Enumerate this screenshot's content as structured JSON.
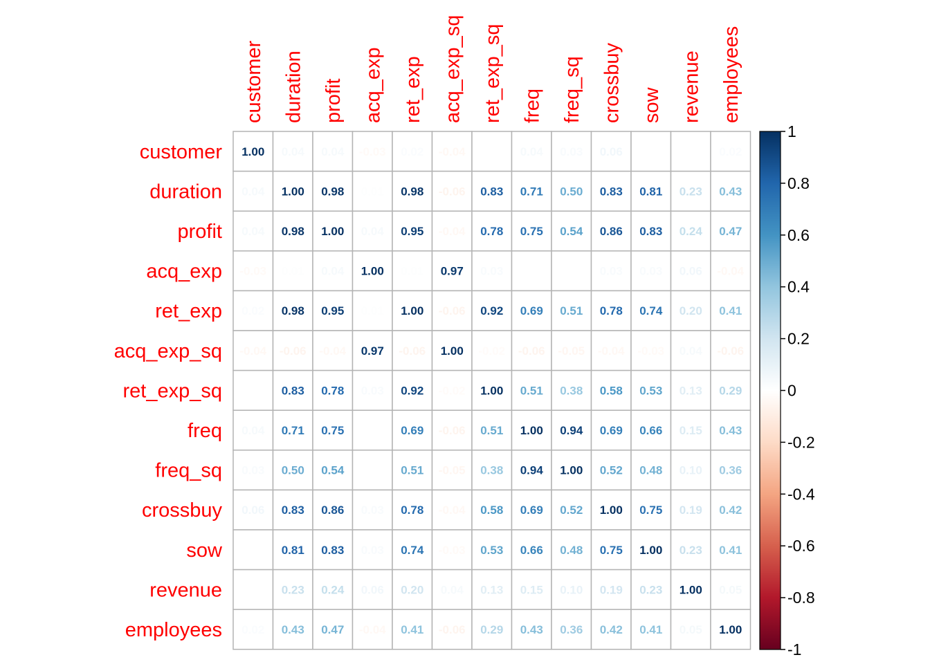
{
  "chart_data": {
    "type": "heatmap",
    "title": "",
    "variables": [
      "customer",
      "duration",
      "profit",
      "acq_exp",
      "ret_exp",
      "acq_exp_sq",
      "ret_exp_sq",
      "freq",
      "freq_sq",
      "crossbuy",
      "sow",
      "revenue",
      "employees"
    ],
    "values": [
      [
        1.0,
        0.04,
        0.04,
        -0.03,
        0.02,
        -0.04,
        0.0,
        0.04,
        0.03,
        0.06,
        0.0,
        0.0,
        0.02
      ],
      [
        0.04,
        1.0,
        0.98,
        0.01,
        0.98,
        -0.06,
        0.83,
        0.71,
        0.5,
        0.83,
        0.81,
        0.23,
        0.43
      ],
      [
        0.04,
        0.98,
        1.0,
        0.04,
        0.95,
        -0.04,
        0.78,
        0.75,
        0.54,
        0.86,
        0.83,
        0.24,
        0.47
      ],
      [
        -0.03,
        0.01,
        0.04,
        1.0,
        0.01,
        0.97,
        0.03,
        0.0,
        0.0,
        0.03,
        0.03,
        0.06,
        -0.04
      ],
      [
        0.02,
        0.98,
        0.95,
        0.01,
        1.0,
        -0.06,
        0.92,
        0.69,
        0.51,
        0.78,
        0.74,
        0.2,
        0.41
      ],
      [
        -0.04,
        -0.06,
        -0.04,
        0.97,
        -0.06,
        1.0,
        -0.02,
        -0.06,
        -0.05,
        -0.04,
        -0.03,
        0.04,
        -0.06
      ],
      [
        0.0,
        0.83,
        0.78,
        0.03,
        0.92,
        -0.02,
        1.0,
        0.51,
        0.38,
        0.58,
        0.53,
        0.13,
        0.29
      ],
      [
        0.04,
        0.71,
        0.75,
        0.0,
        0.69,
        -0.06,
        0.51,
        1.0,
        0.94,
        0.69,
        0.66,
        0.15,
        0.43
      ],
      [
        0.03,
        0.5,
        0.54,
        0.0,
        0.51,
        -0.05,
        0.38,
        0.94,
        1.0,
        0.52,
        0.48,
        0.1,
        0.36
      ],
      [
        0.06,
        0.83,
        0.86,
        0.03,
        0.78,
        -0.04,
        0.58,
        0.69,
        0.52,
        1.0,
        0.75,
        0.19,
        0.42
      ],
      [
        0.0,
        0.81,
        0.83,
        0.03,
        0.74,
        -0.03,
        0.53,
        0.66,
        0.48,
        0.75,
        1.0,
        0.23,
        0.41
      ],
      [
        0.0,
        0.23,
        0.24,
        0.06,
        0.2,
        0.04,
        0.13,
        0.15,
        0.1,
        0.19,
        0.23,
        1.0,
        0.05
      ],
      [
        0.02,
        0.43,
        0.47,
        -0.04,
        0.41,
        -0.06,
        0.29,
        0.43,
        0.36,
        0.42,
        0.41,
        0.05,
        1.0
      ]
    ],
    "color_range": [
      -1,
      1
    ],
    "colorbar_ticks": [
      "1",
      "0.8",
      "0.6",
      "0.4",
      "0.2",
      "0",
      "-0.2",
      "-0.4",
      "-0.6",
      "-0.8",
      "-1"
    ],
    "label_color": "#ff0000",
    "grid": true,
    "legend_position": "right"
  }
}
